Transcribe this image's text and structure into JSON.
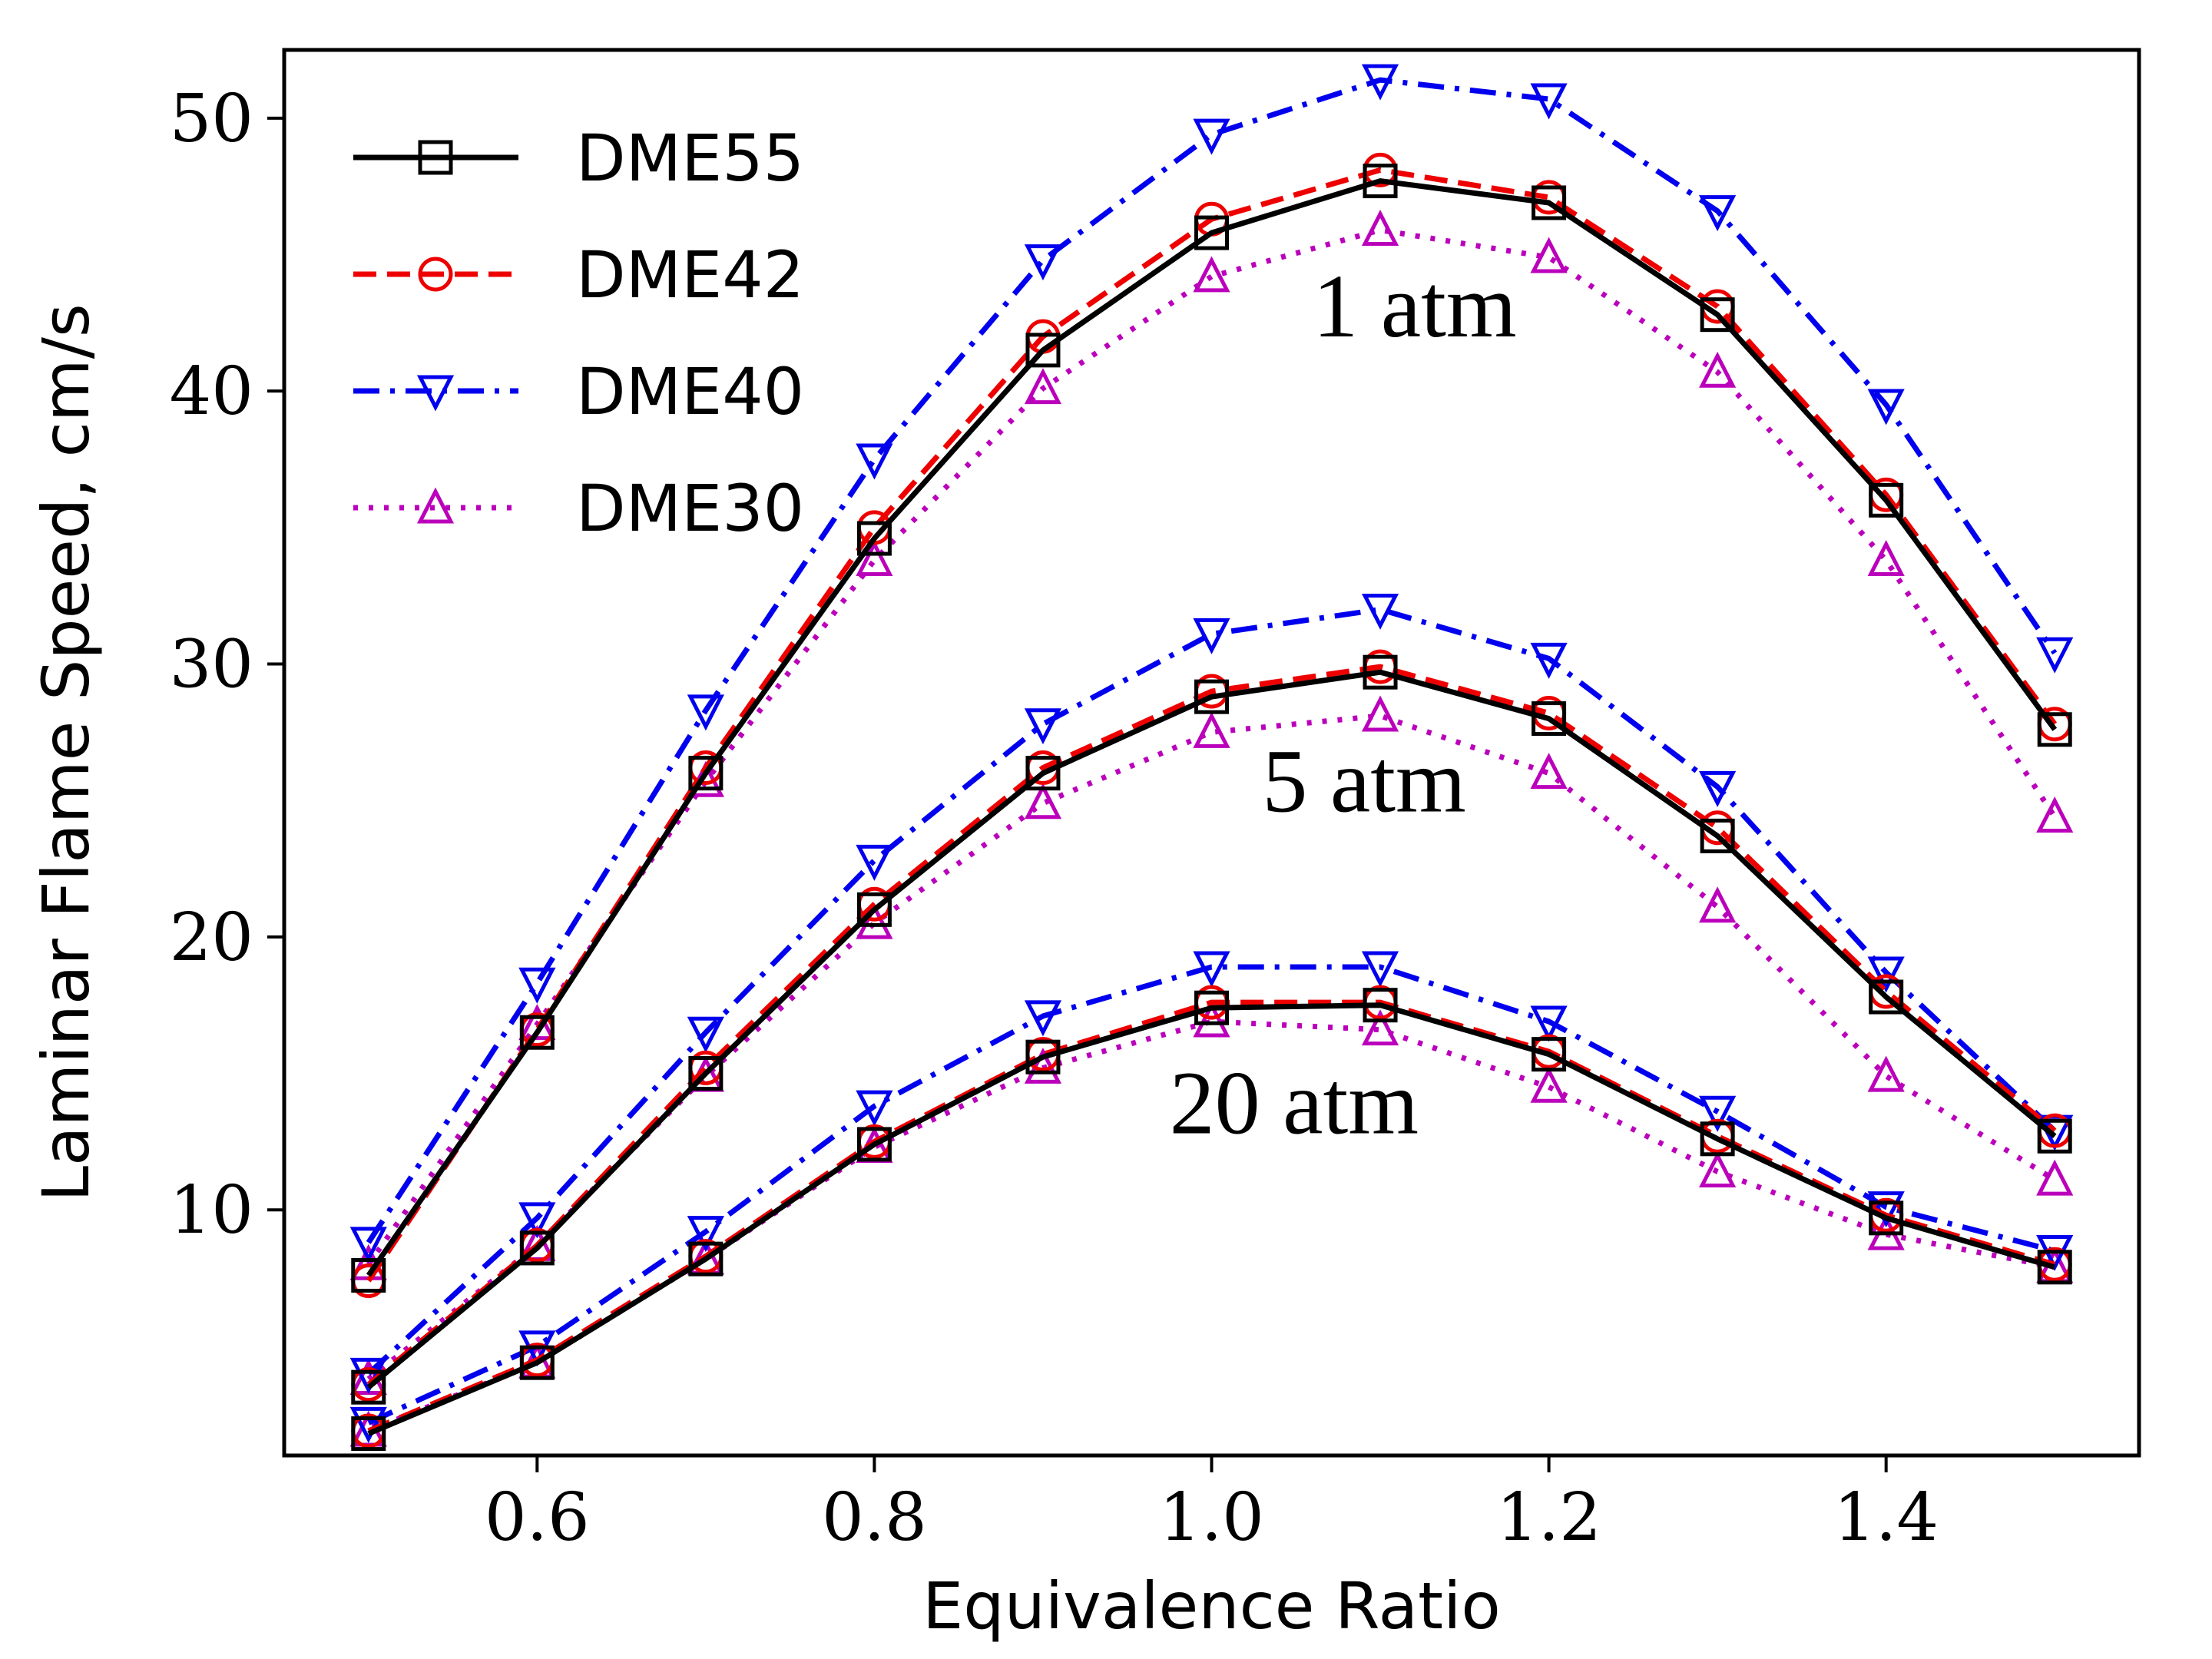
{
  "chart_data": {
    "type": "line",
    "xlabel": "Equivalence Ratio",
    "ylabel": "Laminar Flame Speed, cm/s",
    "xlim": [
      0.45,
      1.55
    ],
    "ylim": [
      1.0,
      52.5
    ],
    "xticks": [
      0.6,
      0.8,
      1.0,
      1.2,
      1.4
    ],
    "xtick_labels": [
      "0.6",
      "0.8",
      "1.0",
      "1.2",
      "1.4"
    ],
    "yticks": [
      10,
      20,
      30,
      40,
      50
    ],
    "ytick_labels": [
      "10",
      "20",
      "30",
      "40",
      "50"
    ],
    "grid": false,
    "legend_position": "top-left",
    "x": [
      0.5,
      0.6,
      0.7,
      0.8,
      0.9,
      1.0,
      1.1,
      1.2,
      1.3,
      1.4,
      1.5
    ],
    "series": [
      {
        "name": "DME55",
        "color": "#000000",
        "dash": "solid",
        "marker": "square",
        "groups": [
          [
            7.6,
            16.5,
            26.0,
            34.6,
            41.5,
            45.8,
            47.7,
            46.9,
            42.8,
            36.0,
            27.6
          ],
          [
            3.5,
            8.6,
            15.0,
            21.0,
            26.0,
            28.8,
            29.7,
            28.0,
            23.7,
            17.8,
            12.7
          ],
          [
            1.8,
            4.4,
            8.2,
            12.4,
            15.6,
            17.4,
            17.5,
            15.7,
            12.6,
            9.7,
            7.9
          ]
        ]
      },
      {
        "name": "DME42",
        "color": "#ee0000",
        "dash": "dashed",
        "marker": "circle",
        "groups": [
          [
            7.4,
            16.6,
            26.2,
            35.0,
            42.0,
            46.3,
            48.1,
            47.1,
            43.1,
            36.2,
            27.8
          ],
          [
            3.6,
            8.7,
            15.2,
            21.2,
            26.2,
            29.0,
            29.9,
            28.2,
            24.0,
            18.0,
            12.9
          ],
          [
            1.9,
            4.5,
            8.3,
            12.5,
            15.7,
            17.6,
            17.6,
            15.8,
            12.7,
            9.8,
            8.0
          ]
        ]
      },
      {
        "name": "DME40",
        "color": "#0000ee",
        "dash": "dashdot",
        "marker": "triangle-down",
        "groups": [
          [
            8.8,
            18.3,
            28.3,
            37.5,
            44.8,
            49.4,
            51.4,
            50.7,
            46.6,
            39.5,
            30.4
          ],
          [
            4.0,
            9.7,
            16.5,
            22.8,
            27.8,
            31.1,
            32.0,
            30.2,
            25.5,
            18.7,
            12.9
          ],
          [
            2.2,
            5.0,
            9.2,
            13.8,
            17.1,
            18.9,
            18.9,
            16.9,
            13.6,
            10.1,
            8.5
          ]
        ]
      },
      {
        "name": "DME30",
        "color": "#bb00bb",
        "dash": "dotted",
        "marker": "triangle-up",
        "groups": [
          [
            8.0,
            16.8,
            25.7,
            33.8,
            40.1,
            44.2,
            45.9,
            44.9,
            40.7,
            33.8,
            24.4
          ],
          [
            3.8,
            8.7,
            14.9,
            20.5,
            24.9,
            27.5,
            28.1,
            26.0,
            21.1,
            14.9,
            11.1
          ],
          [
            1.9,
            4.4,
            8.2,
            12.3,
            15.2,
            16.9,
            16.6,
            14.5,
            11.4,
            9.1,
            7.9
          ]
        ]
      }
    ],
    "annotations": [
      {
        "text": "1 atm",
        "x": 1.06,
        "y": 42.0
      },
      {
        "text": "5 atm",
        "x": 1.03,
        "y": 24.6
      },
      {
        "text": "20 atm",
        "x": 0.975,
        "y": 12.8
      }
    ]
  }
}
